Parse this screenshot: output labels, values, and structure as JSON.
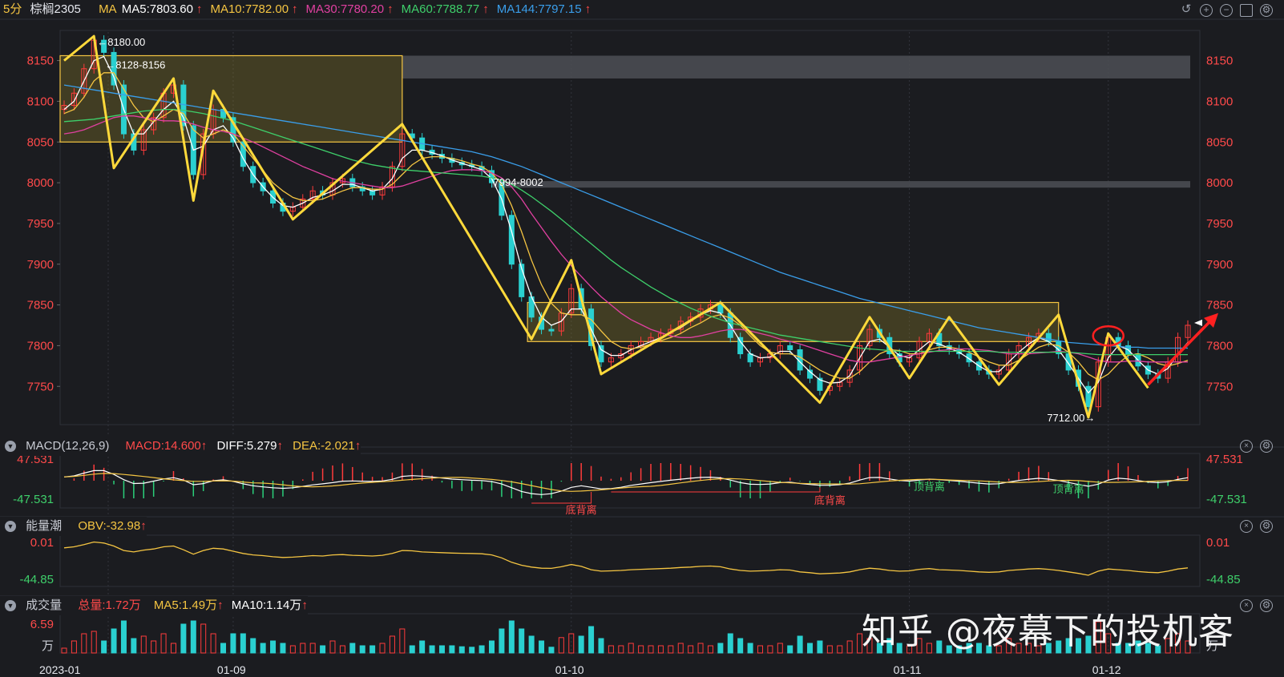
{
  "header": {
    "period": "5分",
    "symbol": "棕榈2305",
    "ma_label": "MA",
    "ma_items": [
      {
        "text": "MA5:7803.60",
        "color": "#ffffff"
      },
      {
        "text": "MA10:7782.00",
        "color": "#f5c542"
      },
      {
        "text": "MA30:7780.20",
        "color": "#e040a0"
      },
      {
        "text": "MA60:7788.77",
        "color": "#3ecf6a"
      },
      {
        "text": "MA144:7797.15",
        "color": "#3a9eea"
      }
    ],
    "arrow": "↑"
  },
  "toolbar_icons": [
    "undo-icon",
    "zoom-in-icon",
    "zoom-out-icon",
    "window-icon",
    "settings-icon"
  ],
  "macd_panel": {
    "title": "MACD(12,26,9)",
    "macd": "MACD:14.600",
    "diff": "DIFF:5.279",
    "dea": "DEA:-2.021",
    "axis_top": "47.531",
    "axis_bottom": "-47.531",
    "annotations": [
      "底背离",
      "底背离",
      "顶背离",
      "顶背离"
    ]
  },
  "obv_panel": {
    "title": "能量潮",
    "obv": "OBV:-32.98",
    "axis_top": "0.01",
    "axis_bottom": "-44.85"
  },
  "volume_panel": {
    "title": "成交量",
    "total": "总量:1.72万",
    "ma5": "MA5:1.49万",
    "ma10": "MA10:1.14万",
    "axis_top": "6.59",
    "unit": "万"
  },
  "watermark": "知乎 @夜幕下的投机客",
  "chart_data": {
    "type": "line",
    "title": "",
    "xlabel": "",
    "ylabel": "",
    "y_ticks": [
      7750,
      7800,
      7850,
      7900,
      7950,
      8000,
      8050,
      8100,
      8150
    ],
    "ylim": [
      7705,
      8185
    ],
    "x_tick_labels": [
      "2023-01",
      "01-09",
      "01-10",
      "01-11",
      "01-12"
    ],
    "price_annotations": [
      "8180.00",
      "8128-8156",
      "7994-8002",
      "7712.00"
    ],
    "zigzag": [
      [
        0,
        8150
      ],
      [
        3,
        8180
      ],
      [
        5,
        8018
      ],
      [
        11,
        8128
      ],
      [
        13,
        7978
      ],
      [
        15,
        8113
      ],
      [
        23,
        7955
      ],
      [
        34,
        8072
      ],
      [
        47,
        7808
      ],
      [
        51,
        7905
      ],
      [
        54,
        7765
      ],
      [
        66,
        7853
      ],
      [
        76,
        7730
      ],
      [
        81,
        7835
      ],
      [
        85,
        7760
      ],
      [
        89,
        7835
      ],
      [
        94,
        7752
      ],
      [
        100,
        7838
      ],
      [
        103,
        7712
      ],
      [
        105,
        7815
      ],
      [
        109,
        7748
      ]
    ],
    "zigzag_x_max": 113,
    "candles_close": [
      8095,
      8110,
      8140,
      8175,
      8160,
      8120,
      8060,
      8040,
      8065,
      8080,
      8110,
      8120,
      8070,
      8010,
      8060,
      8090,
      8080,
      8050,
      8020,
      8000,
      7990,
      7975,
      7965,
      7970,
      7980,
      7990,
      7985,
      8000,
      8005,
      7995,
      7990,
      7985,
      7995,
      8020,
      8060,
      8055,
      8040,
      8035,
      8030,
      8025,
      8022,
      8020,
      8015,
      8000,
      7960,
      7900,
      7860,
      7835,
      7820,
      7818,
      7840,
      7870,
      7845,
      7800,
      7780,
      7785,
      7790,
      7800,
      7805,
      7810,
      7815,
      7820,
      7830,
      7835,
      7845,
      7850,
      7840,
      7810,
      7790,
      7780,
      7785,
      7790,
      7800,
      7795,
      7770,
      7760,
      7745,
      7750,
      7755,
      7770,
      7800,
      7820,
      7810,
      7790,
      7780,
      7785,
      7805,
      7815,
      7800,
      7795,
      7790,
      7780,
      7770,
      7765,
      7770,
      7790,
      7800,
      7810,
      7815,
      7805,
      7790,
      7770,
      7750,
      7725,
      7780,
      7810,
      7800,
      7790,
      7775,
      7765,
      7760,
      7780,
      7810,
      7825
    ],
    "series": [
      {
        "name": "MA5",
        "color": "#ffffff",
        "values": [
          8090,
          8100,
          8125,
          8150,
          8155,
          8130,
          8090,
          8060,
          8060,
          8075,
          8090,
          8100,
          8080,
          8040,
          8045,
          8065,
          8070,
          8055,
          8030,
          8010,
          7995,
          7982,
          7972,
          7970,
          7975,
          7982,
          7985,
          7990,
          7998,
          7998,
          7994,
          7990,
          7992,
          8005,
          8030,
          8040,
          8040,
          8037,
          8033,
          8028,
          8024,
          8020,
          8016,
          8005,
          7980,
          7940,
          7895,
          7860,
          7835,
          7825,
          7830,
          7845,
          7845,
          7820,
          7795,
          7788,
          7788,
          7795,
          7800,
          7805,
          7810,
          7816,
          7822,
          7830,
          7838,
          7843,
          7840,
          7825,
          7805,
          7790,
          7785,
          7786,
          7793,
          7793,
          7780,
          7768,
          7758,
          7754,
          7755,
          7763,
          7785,
          7805,
          7808,
          7798,
          7788,
          7785,
          7795,
          7805,
          7802,
          7797,
          7792,
          7784,
          7775,
          7768,
          7768,
          7780,
          7792,
          7802,
          7810,
          7805,
          7795,
          7778,
          7760,
          7742,
          7755,
          7785,
          7800,
          7795,
          7782,
          7770,
          7765,
          7772,
          7790,
          7804
        ]
      },
      {
        "name": "MA10",
        "color": "#f5c542",
        "values": [
          8085,
          8090,
          8105,
          8125,
          8135,
          8135,
          8115,
          8095,
          8080,
          8075,
          8082,
          8090,
          8085,
          8065,
          8055,
          8060,
          8065,
          8060,
          8045,
          8030,
          8015,
          8000,
          7990,
          7982,
          7978,
          7978,
          7980,
          7985,
          7990,
          7994,
          7994,
          7992,
          7992,
          7998,
          8010,
          8022,
          8030,
          8032,
          8032,
          8030,
          8027,
          8023,
          8020,
          8012,
          7998,
          7972,
          7940,
          7905,
          7875,
          7852,
          7840,
          7838,
          7838,
          7832,
          7818,
          7805,
          7798,
          7796,
          7798,
          7802,
          7806,
          7810,
          7815,
          7822,
          7828,
          7835,
          7838,
          7834,
          7825,
          7812,
          7800,
          7792,
          7790,
          7790,
          7786,
          7778,
          7770,
          7764,
          7760,
          7760,
          7768,
          7780,
          7790,
          7795,
          7794,
          7790,
          7790,
          7795,
          7798,
          7798,
          7796,
          7792,
          7786,
          7780,
          7776,
          7776,
          7782,
          7790,
          7798,
          7802,
          7800,
          7792,
          7780,
          7765,
          7758,
          7765,
          7778,
          7788,
          7790,
          7785,
          7778,
          7775,
          7778,
          7782
        ]
      },
      {
        "name": "MA30",
        "color": "#e040a0",
        "values": [
          8060,
          8062,
          8065,
          8070,
          8075,
          8080,
          8082,
          8082,
          8080,
          8078,
          8076,
          8076,
          8075,
          8072,
          8068,
          8065,
          8063,
          8060,
          8055,
          8050,
          8044,
          8038,
          8032,
          8026,
          8020,
          8015,
          8010,
          8005,
          8002,
          8000,
          7998,
          7996,
          7994,
          7994,
          7996,
          8000,
          8004,
          8008,
          8012,
          8015,
          8016,
          8016,
          8015,
          8012,
          8006,
          7995,
          7980,
          7962,
          7945,
          7928,
          7912,
          7898,
          7885,
          7872,
          7860,
          7850,
          7840,
          7832,
          7826,
          7820,
          7816,
          7812,
          7810,
          7810,
          7812,
          7815,
          7818,
          7820,
          7820,
          7818,
          7815,
          7812,
          7808,
          7805,
          7802,
          7798,
          7794,
          7790,
          7786,
          7782,
          7780,
          7780,
          7782,
          7784,
          7786,
          7788,
          7790,
          7792,
          7794,
          7795,
          7796,
          7796,
          7795,
          7794,
          7792,
          7790,
          7790,
          7790,
          7791,
          7792,
          7793,
          7792,
          7790,
          7786,
          7782,
          7780,
          7780,
          7781,
          7781,
          7780,
          7780,
          7780,
          7780,
          7780
        ]
      },
      {
        "name": "MA60",
        "color": "#3ecf6a",
        "values": [
          8075,
          8076,
          8077,
          8078,
          8080,
          8082,
          8084,
          8086,
          8088,
          8089,
          8090,
          8090,
          8089,
          8087,
          8085,
          8082,
          8079,
          8076,
          8072,
          8068,
          8064,
          8060,
          8056,
          8052,
          8048,
          8044,
          8040,
          8036,
          8032,
          8028,
          8025,
          8022,
          8020,
          8018,
          8016,
          8015,
          8014,
          8013,
          8012,
          8011,
          8010,
          8009,
          8008,
          8006,
          8003,
          7998,
          7991,
          7983,
          7974,
          7965,
          7955,
          7945,
          7935,
          7925,
          7915,
          7905,
          7896,
          7888,
          7880,
          7872,
          7865,
          7858,
          7852,
          7846,
          7841,
          7836,
          7832,
          7828,
          7825,
          7822,
          7819,
          7816,
          7813,
          7811,
          7809,
          7807,
          7805,
          7803,
          7801,
          7799,
          7797,
          7796,
          7795,
          7794,
          7793,
          7793,
          7793,
          7793,
          7793,
          7793,
          7793,
          7793,
          7793,
          7793,
          7792,
          7792,
          7792,
          7792,
          7792,
          7792,
          7792,
          7792,
          7791,
          7790,
          7789,
          7789,
          7789,
          7789,
          7789,
          7789,
          7789,
          7789,
          7789,
          7789
        ]
      },
      {
        "name": "MA144",
        "color": "#3a9eea",
        "values": [
          8120,
          8118,
          8116,
          8114,
          8112,
          8110,
          8108,
          8106,
          8104,
          8102,
          8100,
          8098,
          8096,
          8094,
          8092,
          8090,
          8088,
          8086,
          8084,
          8082,
          8080,
          8078,
          8076,
          8074,
          8072,
          8070,
          8068,
          8066,
          8064,
          8062,
          8060,
          8058,
          8056,
          8054,
          8052,
          8050,
          8048,
          8046,
          8044,
          8042,
          8040,
          8038,
          8035,
          8032,
          8028,
          8024,
          8020,
          8015,
          8010,
          8005,
          8000,
          7995,
          7990,
          7985,
          7980,
          7975,
          7970,
          7965,
          7960,
          7955,
          7950,
          7945,
          7940,
          7935,
          7930,
          7925,
          7920,
          7915,
          7910,
          7905,
          7900,
          7895,
          7890,
          7886,
          7882,
          7878,
          7874,
          7870,
          7866,
          7862,
          7858,
          7855,
          7852,
          7849,
          7846,
          7843,
          7840,
          7837,
          7834,
          7831,
          7828,
          7825,
          7822,
          7820,
          7818,
          7816,
          7814,
          7812,
          7810,
          7808,
          7806,
          7804,
          7803,
          7802,
          7801,
          7800,
          7799,
          7798,
          7798,
          7797,
          7797,
          7797,
          7797,
          7797
        ]
      }
    ],
    "zones": [
      {
        "from_idx": 0,
        "to_idx": 34,
        "low": 8050,
        "high": 8156
      },
      {
        "from_idx": 47,
        "to_idx": 100,
        "low": 7805,
        "high": 7853
      }
    ],
    "resistance_bands": [
      {
        "low": 8128,
        "high": 8156
      },
      {
        "low": 7994,
        "high": 8002
      }
    ],
    "grid": false,
    "legend": "top-left"
  }
}
